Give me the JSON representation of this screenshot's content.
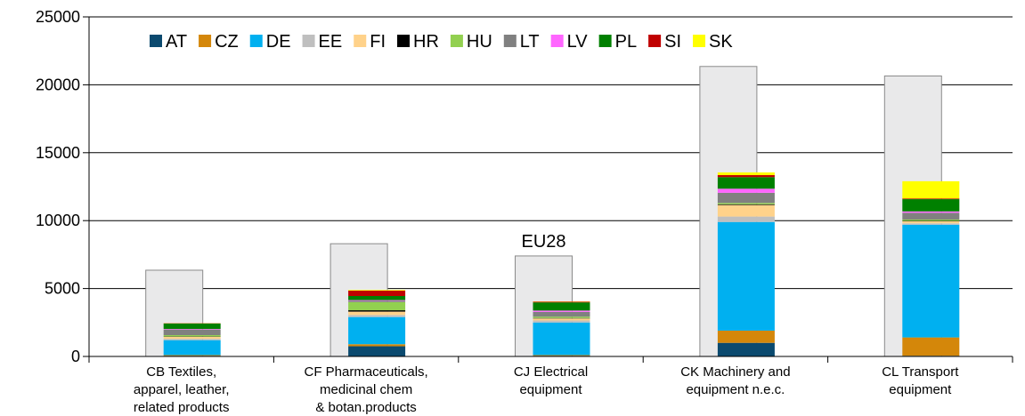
{
  "chart_data": {
    "type": "stacked_bar",
    "categories": [
      [
        "CB  Textiles,",
        "apparel, leather,",
        "related products"
      ],
      [
        "CF  Pharmaceuticals,",
        "medicinal chem",
        "& botan.products"
      ],
      [
        "CJ  Electrical",
        "equipment"
      ],
      [
        "CK  Machinery and",
        "equipment n.e.c."
      ],
      [
        "CL  Transport",
        "equipment"
      ]
    ],
    "background_series": {
      "name": "EU28",
      "color": "#e9e9ea",
      "values": [
        6350,
        8300,
        7400,
        21350,
        20650
      ]
    },
    "series": [
      {
        "name": "AT",
        "color": "#0b4a6f",
        "values": [
          50,
          750,
          50,
          1000,
          50
        ]
      },
      {
        "name": "CZ",
        "color": "#d4870a",
        "values": [
          50,
          150,
          50,
          900,
          1350
        ]
      },
      {
        "name": "DE",
        "color": "#00b0f0",
        "values": [
          1100,
          2000,
          2400,
          8000,
          8300
        ]
      },
      {
        "name": "EE",
        "color": "#bfbfbf",
        "values": [
          100,
          150,
          150,
          400,
          100
        ]
      },
      {
        "name": "FI",
        "color": "#ffd28a",
        "values": [
          150,
          250,
          150,
          850,
          150
        ]
      },
      {
        "name": "HR",
        "color": "#000000",
        "values": [
          20,
          100,
          30,
          50,
          30
        ]
      },
      {
        "name": "HU",
        "color": "#92d050",
        "values": [
          100,
          600,
          100,
          100,
          100
        ]
      },
      {
        "name": "LT",
        "color": "#808080",
        "values": [
          400,
          100,
          350,
          750,
          500
        ]
      },
      {
        "name": "LV",
        "color": "#ff66ff",
        "values": [
          50,
          50,
          100,
          300,
          100
        ]
      },
      {
        "name": "PL",
        "color": "#008000",
        "values": [
          400,
          300,
          600,
          850,
          900
        ]
      },
      {
        "name": "SI",
        "color": "#c00000",
        "values": [
          20,
          400,
          50,
          150,
          50
        ]
      },
      {
        "name": "SK",
        "color": "#ffff00",
        "values": [
          10,
          50,
          20,
          200,
          1270
        ]
      }
    ],
    "ylim": [
      0,
      25000
    ],
    "yticks": [
      0,
      5000,
      10000,
      15000,
      20000,
      25000
    ],
    "grid": true,
    "legend": "top"
  }
}
